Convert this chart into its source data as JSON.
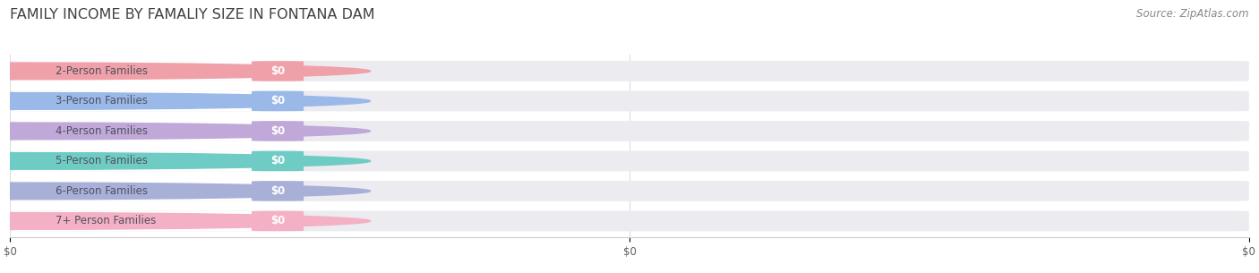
{
  "title": "FAMILY INCOME BY FAMALIY SIZE IN FONTANA DAM",
  "source": "Source: ZipAtlas.com",
  "categories": [
    "2-Person Families",
    "3-Person Families",
    "4-Person Families",
    "5-Person Families",
    "6-Person Families",
    "7+ Person Families"
  ],
  "values": [
    0,
    0,
    0,
    0,
    0,
    0
  ],
  "bar_colors": [
    "#f0a0a8",
    "#9ab8e8",
    "#c0a8d8",
    "#6eccc4",
    "#a8b0d8",
    "#f4b0c4"
  ],
  "bg_color": "#ffffff",
  "bar_bg_color": "#ebebf0",
  "bar_inner_bg": "#ffffff",
  "title_color": "#404040",
  "source_color": "#888888",
  "label_text_color": "#505060",
  "value_text_color": "#ffffff",
  "title_fontsize": 11.5,
  "source_fontsize": 8.5,
  "bar_label_fontsize": 8.5,
  "value_fontsize": 8.5,
  "bar_height": 0.68,
  "xtick_labels": [
    "$0",
    "$0",
    "$0"
  ],
  "xtick_positions": [
    0.0,
    0.5,
    1.0
  ],
  "grid_color": "#d8d8e0",
  "spine_color": "#cccccc"
}
